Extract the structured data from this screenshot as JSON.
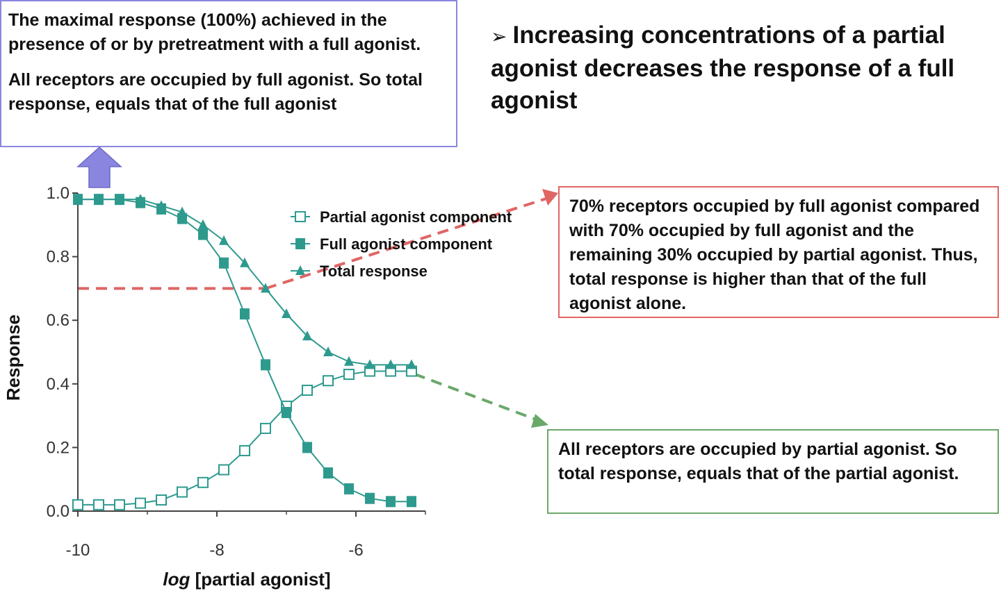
{
  "top_left_box": {
    "line1": "The maximal response (100%) achieved in the presence of or by pretreatment with a full agonist.",
    "line2": "All receptors are occupied by full agonist. So total response, equals that of the full agonist"
  },
  "headline": {
    "bullet": "➢",
    "text": "Increasing concentrations of a partial agonist decreases the response of a full agonist"
  },
  "middle_box": {
    "text": "70% receptors occupied by full agonist compared with 70% occupied by full agonist and the remaining 30% occupied by partial agonist. Thus, total response is higher than that of the full agonist alone."
  },
  "bottom_box": {
    "text": "All receptors are occupied by partial agonist. So total response, equals that of the partial agonist."
  },
  "colors": {
    "series": "#2e9a8e",
    "blue_arrow": "#8a86e0",
    "red_dashed": "#e06565",
    "green_dashed": "#6aa86a"
  },
  "chart_data": {
    "type": "line",
    "xlabel_italic": "log",
    "xlabel_rest": " [partial agonist]",
    "ylabel": "Response",
    "xlim": [
      -10,
      -5
    ],
    "ylim": [
      0,
      1.0
    ],
    "x_ticks": [
      -10,
      -8,
      -6
    ],
    "y_ticks": [
      0.0,
      0.2,
      0.4,
      0.6,
      0.8,
      1.0
    ],
    "x_tick_labels": [
      "-10",
      "-8",
      "-6"
    ],
    "y_tick_labels": [
      "0.0",
      "0.2",
      "0.4",
      "0.6",
      "0.8",
      "1.0"
    ],
    "legend_position": "top-right",
    "reference_line_y": 0.7,
    "series": [
      {
        "name": "Partial agonist component",
        "marker": "open-square",
        "x": [
          -10,
          -9.7,
          -9.4,
          -9.1,
          -8.8,
          -8.5,
          -8.2,
          -7.9,
          -7.6,
          -7.3,
          -7.0,
          -6.7,
          -6.4,
          -6.1,
          -5.8,
          -5.5,
          -5.2
        ],
        "y": [
          0.02,
          0.02,
          0.02,
          0.025,
          0.035,
          0.06,
          0.09,
          0.13,
          0.19,
          0.26,
          0.33,
          0.38,
          0.41,
          0.43,
          0.44,
          0.44,
          0.44
        ]
      },
      {
        "name": "Full agonist component",
        "marker": "filled-square",
        "x": [
          -10,
          -9.7,
          -9.4,
          -9.1,
          -8.8,
          -8.5,
          -8.2,
          -7.9,
          -7.6,
          -7.3,
          -7.0,
          -6.7,
          -6.4,
          -6.1,
          -5.8,
          -5.5,
          -5.2
        ],
        "y": [
          0.98,
          0.98,
          0.98,
          0.97,
          0.95,
          0.92,
          0.87,
          0.78,
          0.62,
          0.46,
          0.31,
          0.2,
          0.12,
          0.07,
          0.04,
          0.03,
          0.03
        ]
      },
      {
        "name": "Total response",
        "marker": "filled-triangle",
        "x": [
          -10,
          -9.7,
          -9.4,
          -9.1,
          -8.8,
          -8.5,
          -8.2,
          -7.9,
          -7.6,
          -7.3,
          -7.0,
          -6.7,
          -6.4,
          -6.1,
          -5.8,
          -5.5,
          -5.2
        ],
        "y": [
          0.98,
          0.98,
          0.98,
          0.98,
          0.96,
          0.94,
          0.9,
          0.85,
          0.78,
          0.7,
          0.62,
          0.55,
          0.5,
          0.47,
          0.46,
          0.46,
          0.46
        ]
      }
    ]
  }
}
